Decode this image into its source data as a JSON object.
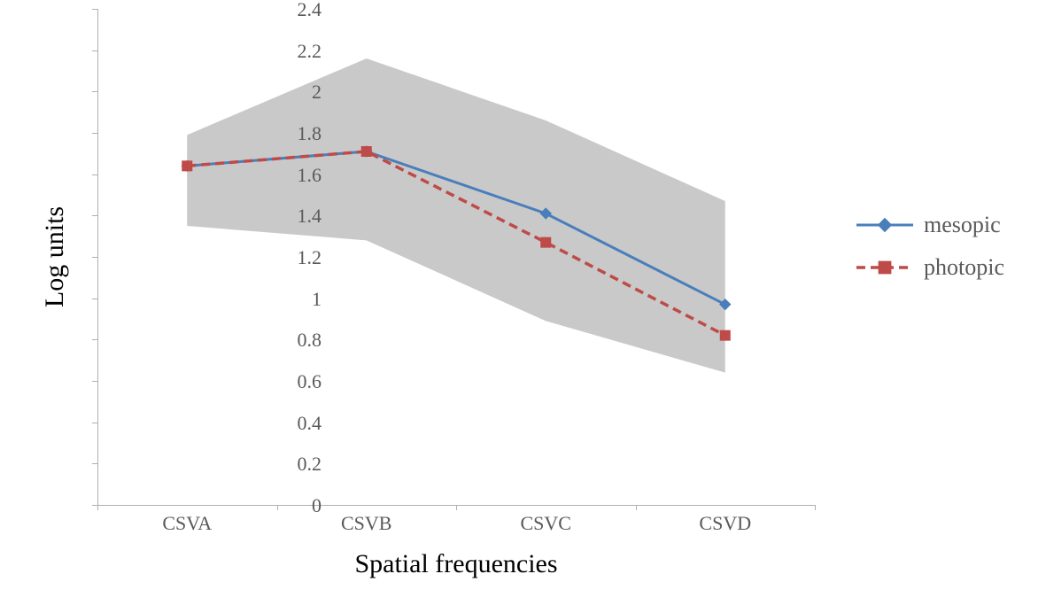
{
  "chart": {
    "type": "line",
    "y_axis": {
      "title": "Log units",
      "min": 0,
      "max": 2.4,
      "tick_step": 0.2,
      "tick_labels": [
        "0",
        "0.2",
        "0.4",
        "0.6",
        "0.8",
        "1",
        "1.2",
        "1.4",
        "1.6",
        "1.8",
        "2",
        "2.2",
        "2.4"
      ]
    },
    "x_axis": {
      "title": "Spatial frequencies",
      "categories": [
        "CSVA",
        "CSVB",
        "CSVC",
        "CSVD"
      ]
    },
    "band": {
      "upper": [
        1.79,
        2.16,
        1.86,
        1.47
      ],
      "lower": [
        1.35,
        1.28,
        0.89,
        0.64
      ],
      "fill": "#bfbfbf",
      "opacity": 0.85
    },
    "series": [
      {
        "name": "mesopic",
        "values": [
          1.64,
          1.71,
          1.41,
          0.97
        ],
        "color": "#4a7ebb",
        "line_width": 3,
        "dash": "none",
        "marker": "diamond",
        "marker_size": 12
      },
      {
        "name": "photopic",
        "values": [
          1.64,
          1.71,
          1.27,
          0.82
        ],
        "color": "#be4b48",
        "line_width": 3.5,
        "dash": "10,6",
        "marker": "square",
        "marker_size": 11
      }
    ],
    "axis_color": "#b0b0b0",
    "tick_font_color": "#595959",
    "tick_font_size": 22,
    "axis_title_font_size": 30,
    "legend_font_size": 26,
    "background": "#ffffff"
  }
}
